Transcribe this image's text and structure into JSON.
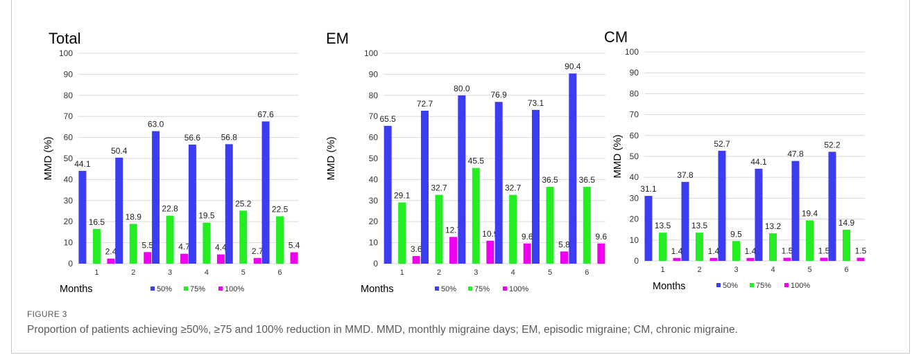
{
  "figure": {
    "label": "FIGURE 3",
    "caption": "Proportion of patients achieving ≥50%, ≥75 and 100% reduction in MMD. MMD, monthly migraine days; EM, episodic migraine; CM, chronic migraine."
  },
  "colors": {
    "s50": "#3c3cf0",
    "s75": "#22ee22",
    "s100": "#ee00ee",
    "grid": "#d9d9d9",
    "text": "#000000"
  },
  "chart_data": [
    {
      "type": "bar",
      "title": "Total",
      "xlabel": "Months",
      "ylabel": "MMD (%)",
      "ylim": [
        0,
        100
      ],
      "yticks": [
        0,
        10,
        20,
        30,
        40,
        50,
        60,
        70,
        80,
        90,
        100
      ],
      "categories": [
        "1",
        "2",
        "3",
        "4",
        "5",
        "6"
      ],
      "legend_position": "bottom",
      "series": [
        {
          "name": "50%",
          "values": [
            44.1,
            50.4,
            63.0,
            56.6,
            56.8,
            67.6
          ],
          "labels": [
            "44.1",
            "50.4",
            "63.0",
            "56.6",
            "56.8",
            "67.6"
          ]
        },
        {
          "name": "75%",
          "values": [
            16.5,
            18.9,
            22.8,
            19.5,
            25.2,
            22.5
          ],
          "labels": [
            "16.5",
            "18.9",
            "22.8",
            "19.5",
            "25.2",
            "22.5"
          ]
        },
        {
          "name": "100%",
          "values": [
            2.4,
            5.5,
            4.7,
            4.4,
            2.7,
            5.4
          ],
          "labels": [
            "2.4",
            "5.5",
            "4.7",
            "4.4",
            "2.7",
            "5.4"
          ]
        }
      ]
    },
    {
      "type": "bar",
      "title": "EM",
      "xlabel": "Months",
      "ylabel": "MMD (%)",
      "ylim": [
        0,
        100
      ],
      "yticks": [
        0,
        10,
        20,
        30,
        40,
        50,
        60,
        70,
        80,
        90,
        100
      ],
      "categories": [
        "1",
        "2",
        "3",
        "4",
        "5",
        "6"
      ],
      "legend_position": "bottom",
      "series": [
        {
          "name": "50%",
          "values": [
            65.5,
            72.7,
            80.0,
            76.9,
            73.1,
            90.4
          ],
          "labels": [
            "65.5",
            "72.7",
            "80.0",
            "76.9",
            "73.1",
            "90.4"
          ]
        },
        {
          "name": "75%",
          "values": [
            29.1,
            32.7,
            45.5,
            32.7,
            36.5,
            36.5
          ],
          "labels": [
            "29.1",
            "32.7",
            "45.5",
            "32.7",
            "36.5",
            "36.5"
          ]
        },
        {
          "name": "100%",
          "values": [
            3.6,
            12.7,
            10.9,
            9.6,
            5.8,
            9.6
          ],
          "labels": [
            "3.6",
            "12.7",
            "10.9",
            "9.6",
            "5.8",
            "9.6"
          ]
        }
      ]
    },
    {
      "type": "bar",
      "title": "CM",
      "xlabel": "Months",
      "ylabel": "MMD (%)",
      "ylim": [
        0,
        100
      ],
      "yticks": [
        0,
        10,
        20,
        30,
        40,
        50,
        60,
        70,
        80,
        90,
        100
      ],
      "categories": [
        "1",
        "2",
        "3",
        "4",
        "5",
        "6"
      ],
      "legend_position": "bottom",
      "series": [
        {
          "name": "50%",
          "values": [
            31.1,
            37.8,
            52.7,
            44.1,
            47.8,
            52.2
          ],
          "labels": [
            "31.1",
            "37.8",
            "52.7",
            "44.1",
            "47.8",
            "52.2"
          ]
        },
        {
          "name": "75%",
          "values": [
            13.5,
            13.5,
            9.5,
            13.2,
            19.4,
            14.9
          ],
          "labels": [
            "13.5",
            "13.5",
            "9.5",
            "13.2",
            "19.4",
            "14.9"
          ]
        },
        {
          "name": "100%",
          "values": [
            1.4,
            1.4,
            1.4,
            1.5,
            1.5,
            1.5
          ],
          "labels": [
            "1.4",
            "1.4",
            "1.4",
            "1.5",
            "1.5",
            "1.5"
          ]
        }
      ]
    }
  ]
}
